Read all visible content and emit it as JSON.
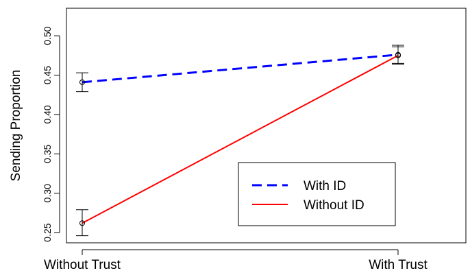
{
  "chart_data": {
    "type": "line",
    "title": "",
    "xlabel": "",
    "ylabel": "Sending Proportion",
    "categories": [
      "Without Trust",
      "With Trust"
    ],
    "ylim": [
      0.237,
      0.535
    ],
    "yticks": [
      0.25,
      0.3,
      0.35,
      0.4,
      0.45,
      0.5
    ],
    "ytick_labels": [
      "0.25",
      "0.30",
      "0.35",
      "0.40",
      "0.45",
      "0.50"
    ],
    "grid": false,
    "legend_position": "bottom-right",
    "series": [
      {
        "name": "With ID",
        "values": [
          0.441,
          0.476
        ],
        "error_low": [
          0.429,
          0.465
        ],
        "error_high": [
          0.453,
          0.488
        ],
        "color": "#0000ff",
        "line_style": "dashed"
      },
      {
        "name": "Without ID",
        "values": [
          0.262,
          0.475
        ],
        "error_low": [
          0.246,
          0.464
        ],
        "error_high": [
          0.279,
          0.486
        ],
        "color": "#ff0000",
        "line_style": "solid"
      }
    ]
  }
}
